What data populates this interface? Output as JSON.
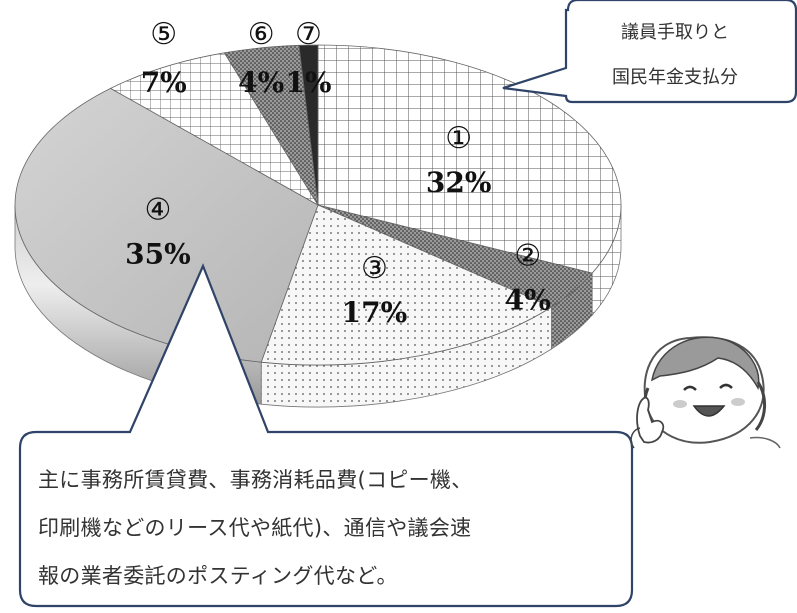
{
  "chart_data": {
    "type": "pie",
    "slices": [
      {
        "marker": "①",
        "label": "32%",
        "value": 32,
        "pattern": "grid",
        "color": "#ffffff"
      },
      {
        "marker": "②",
        "label": "4%",
        "value": 4,
        "pattern": "dense-dots",
        "color": "#888888"
      },
      {
        "marker": "③",
        "label": "17%",
        "value": 17,
        "pattern": "dots",
        "color": "#f4f4f4"
      },
      {
        "marker": "④",
        "label": "35%",
        "value": 35,
        "pattern": "solid",
        "color": "#c8c8c8"
      },
      {
        "marker": "⑤",
        "label": "7%",
        "value": 7,
        "pattern": "lines",
        "color": "#ffffff"
      },
      {
        "marker": "⑥",
        "label": "4%",
        "value": 4,
        "pattern": "dense-dots",
        "color": "#707070"
      },
      {
        "marker": "⑦",
        "label": "1%",
        "value": 1,
        "pattern": "solid",
        "color": "#2a2a2a"
      }
    ]
  },
  "callouts": {
    "top": [
      "議員手取りと",
      "国民年金支払分"
    ],
    "bottom": [
      "主に事務所賃貸費、事務消耗品費(コピー機、",
      "印刷機などのリース代や紙代)、通信や議会速",
      "報の業者委託のポスティング代など。"
    ]
  },
  "colors": {
    "callout_border": "#2f4468",
    "text": "#222222"
  },
  "icons": {
    "character": "smiling-girl-pointing-icon"
  }
}
